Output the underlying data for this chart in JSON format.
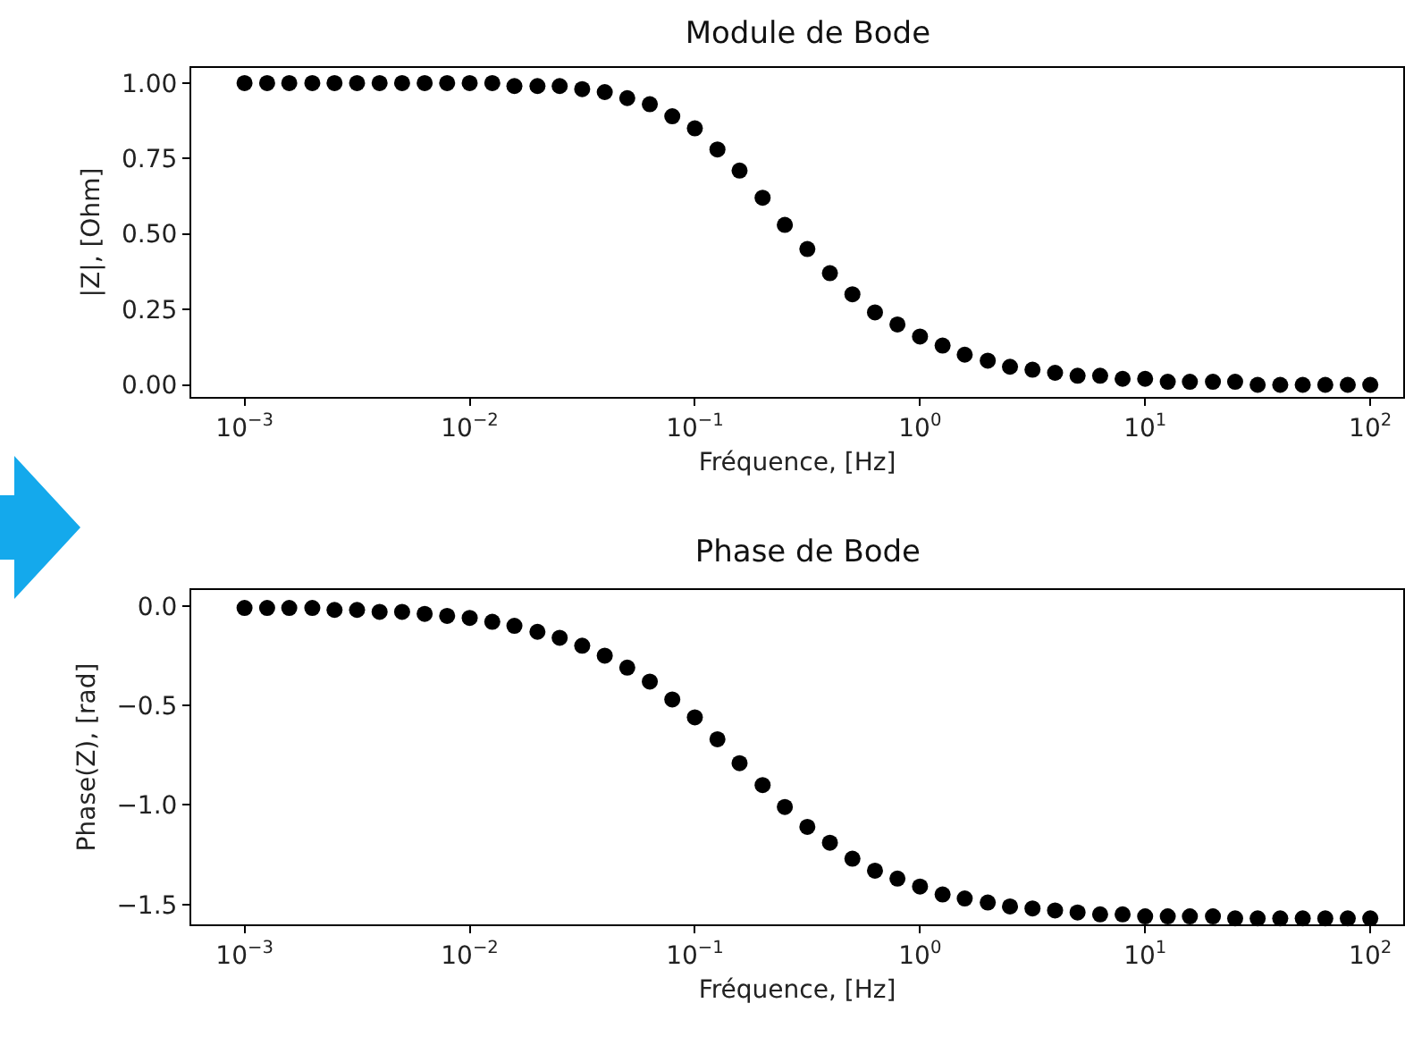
{
  "chart_data": [
    {
      "type": "scatter",
      "title": "Module de Bode",
      "xlabel": "Fréquence, [Hz]",
      "ylabel": "|Z|, [Ohm]",
      "log": "x",
      "grid": false,
      "marker": "circle",
      "xlim": [
        0.00058,
        140
      ],
      "xticks": [
        {
          "value": 0.001,
          "label": "10$^{−3}$"
        },
        {
          "value": 0.01,
          "label": "10$^{−2}$"
        },
        {
          "value": 0.1,
          "label": "10$^{−1}$"
        },
        {
          "value": 1,
          "label": "10$^{0}$"
        },
        {
          "value": 10,
          "label": "10$^{1}$"
        },
        {
          "value": 100,
          "label": "10$^{2}$"
        }
      ],
      "ylim": [
        -0.04,
        1.05
      ],
      "yticks": [
        {
          "value": 0,
          "label": "0.00"
        },
        {
          "value": 0.25,
          "label": "0.25"
        },
        {
          "value": 0.5,
          "label": "0.50"
        },
        {
          "value": 0.75,
          "label": "0.75"
        },
        {
          "value": 1,
          "label": "1.00"
        }
      ],
      "x": [
        0.001,
        0.00126,
        0.00158,
        0.002,
        0.00251,
        0.00316,
        0.00398,
        0.00501,
        0.00631,
        0.00794,
        0.01,
        0.0126,
        0.0158,
        0.02,
        0.0251,
        0.0316,
        0.0398,
        0.0501,
        0.0631,
        0.0794,
        0.1,
        0.126,
        0.158,
        0.2,
        0.251,
        0.316,
        0.398,
        0.501,
        0.631,
        0.794,
        1,
        1.26,
        1.58,
        2,
        2.51,
        3.16,
        3.98,
        5.01,
        6.31,
        7.94,
        10,
        12.6,
        15.8,
        20,
        25.1,
        31.6,
        39.8,
        50.1,
        63.1,
        79.4,
        100
      ],
      "series": [
        {
          "color": "#000000",
          "values": [
            1.0,
            1.0,
            1.0,
            1.0,
            1.0,
            1.0,
            1.0,
            1.0,
            1.0,
            1.0,
            1.0,
            1.0,
            0.99,
            0.99,
            0.99,
            0.98,
            0.97,
            0.95,
            0.93,
            0.89,
            0.85,
            0.78,
            0.71,
            0.62,
            0.53,
            0.45,
            0.37,
            0.3,
            0.24,
            0.2,
            0.16,
            0.13,
            0.1,
            0.08,
            0.06,
            0.05,
            0.04,
            0.03,
            0.03,
            0.02,
            0.02,
            0.01,
            0.01,
            0.01,
            0.01,
            0.0,
            0.0,
            0.0,
            0.0,
            0.0,
            0.0
          ]
        }
      ]
    },
    {
      "type": "scatter",
      "title": "Phase de Bode",
      "xlabel": "Fréquence, [Hz]",
      "ylabel": "Phase(Z), [rad]",
      "log": "x",
      "grid": false,
      "marker": "circle",
      "xlim": [
        0.00058,
        140
      ],
      "xticks": [
        {
          "value": 0.001,
          "label": "10$^{−3}$"
        },
        {
          "value": 0.01,
          "label": "10$^{−2}$"
        },
        {
          "value": 0.1,
          "label": "10$^{−1}$"
        },
        {
          "value": 1,
          "label": "10$^{0}$"
        },
        {
          "value": 10,
          "label": "10$^{1}$"
        },
        {
          "value": 100,
          "label": "10$^{2}$"
        }
      ],
      "ylim": [
        -1.6,
        0.08
      ],
      "yticks": [
        {
          "value": -1.5,
          "label": "−1.5"
        },
        {
          "value": -1,
          "label": "−1.0"
        },
        {
          "value": -0.5,
          "label": "−0.5"
        },
        {
          "value": 0,
          "label": "0.0"
        }
      ],
      "x": [
        0.001,
        0.00126,
        0.00158,
        0.002,
        0.00251,
        0.00316,
        0.00398,
        0.00501,
        0.00631,
        0.00794,
        0.01,
        0.0126,
        0.0158,
        0.02,
        0.0251,
        0.0316,
        0.0398,
        0.0501,
        0.0631,
        0.0794,
        0.1,
        0.126,
        0.158,
        0.2,
        0.251,
        0.316,
        0.398,
        0.501,
        0.631,
        0.794,
        1,
        1.26,
        1.58,
        2,
        2.51,
        3.16,
        3.98,
        5.01,
        6.31,
        7.94,
        10,
        12.6,
        15.8,
        20,
        25.1,
        31.6,
        39.8,
        50.1,
        63.1,
        79.4,
        100
      ],
      "series": [
        {
          "color": "#000000",
          "values": [
            -0.01,
            -0.01,
            -0.01,
            -0.01,
            -0.02,
            -0.02,
            -0.03,
            -0.03,
            -0.04,
            -0.05,
            -0.06,
            -0.08,
            -0.1,
            -0.13,
            -0.16,
            -0.2,
            -0.25,
            -0.31,
            -0.38,
            -0.47,
            -0.56,
            -0.67,
            -0.79,
            -0.9,
            -1.01,
            -1.11,
            -1.19,
            -1.27,
            -1.33,
            -1.37,
            -1.41,
            -1.45,
            -1.47,
            -1.49,
            -1.51,
            -1.52,
            -1.53,
            -1.54,
            -1.55,
            -1.55,
            -1.56,
            -1.56,
            -1.56,
            -1.56,
            -1.57,
            -1.57,
            -1.57,
            -1.57,
            -1.57,
            -1.57,
            -1.57
          ]
        }
      ]
    }
  ]
}
